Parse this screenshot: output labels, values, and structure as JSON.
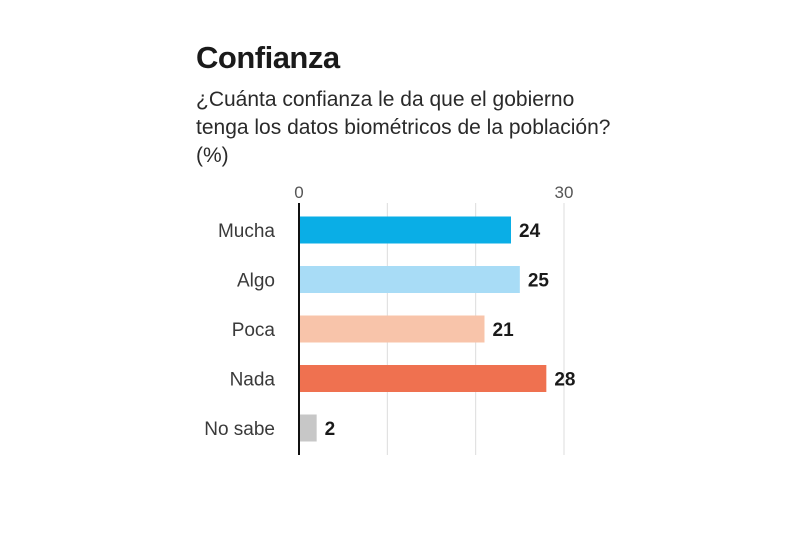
{
  "chart_data": {
    "type": "bar",
    "orientation": "horizontal",
    "title": "Confianza",
    "subtitle": "¿Cuánta confianza le da que el gobierno tenga los datos biométricos de la población? (%)",
    "categories": [
      "Mucha",
      "Algo",
      "Poca",
      "Nada",
      "No sabe"
    ],
    "values": [
      24,
      25,
      21,
      28,
      2
    ],
    "colors": [
      "#0aaee6",
      "#a8dcf6",
      "#f8c4aa",
      "#ef7150",
      "#c7c7c7"
    ],
    "xlim": [
      0,
      30
    ],
    "tick_labels": [
      "0",
      "30"
    ],
    "grid": true,
    "legend": "none"
  }
}
